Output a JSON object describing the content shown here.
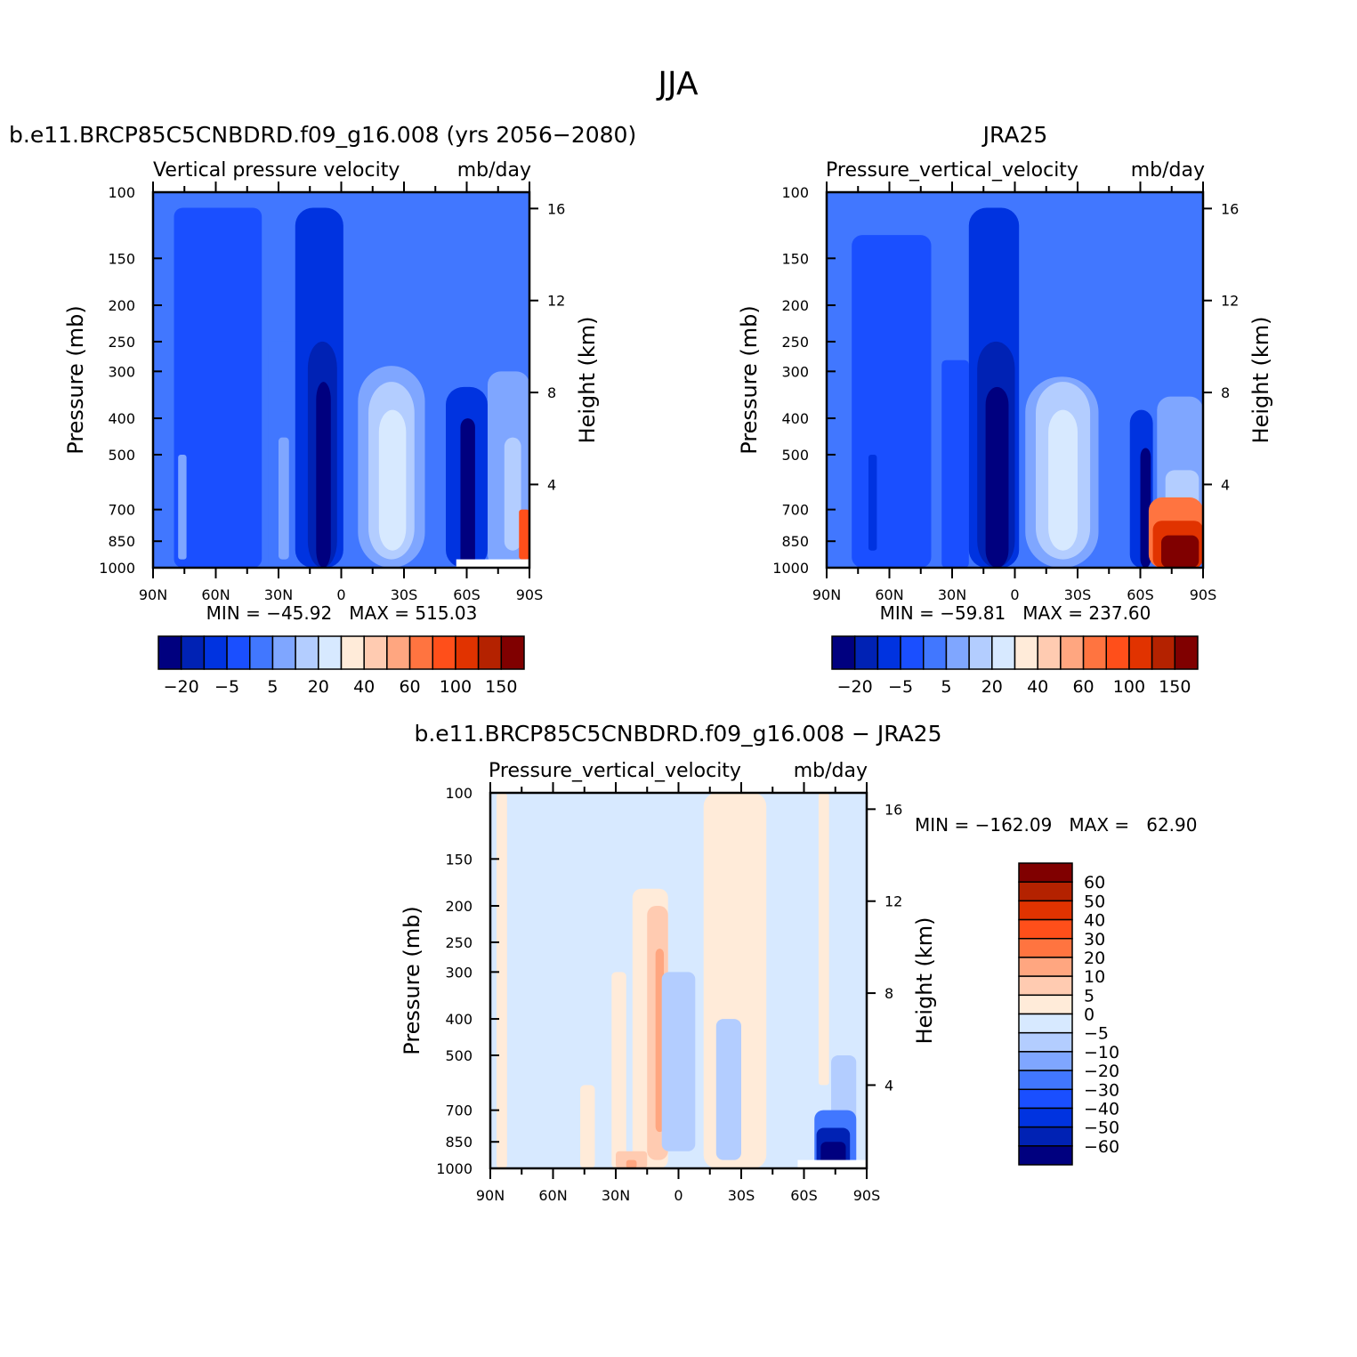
{
  "chart_data": [
    {
      "type": "contour",
      "suptitle": "JJA",
      "title": "b.e11.BRCP85C5CNBDRD.f09_g16.008 (yrs 2056−2080)",
      "subtitle_left": "Vertical pressure velocity",
      "subtitle_right": "mb/day",
      "ylabel": "Pressure (mb)",
      "ylabel_right": "Height (km)",
      "y_scale": "log",
      "ylim": [
        1000,
        100
      ],
      "y_ticks": [
        "100",
        "150",
        "200",
        "250",
        "300",
        "400",
        "500",
        "700",
        "850",
        "1000"
      ],
      "y_right_ticks": [
        "16",
        "12",
        "8",
        "4"
      ],
      "x_ticks": [
        "90N",
        "60N",
        "30N",
        "0",
        "30S",
        "60S",
        "90S"
      ],
      "minmax": "MIN = −45.92   MAX = 515.03",
      "colorbar_labels": [
        "−20",
        "−5",
        "5",
        "20",
        "40",
        "60",
        "100",
        "150"
      ],
      "colors": [
        "#00007f",
        "#0022b4",
        "#0033e0",
        "#1a4fff",
        "#4177ff",
        "#7fa6ff",
        "#b3cdff",
        "#d7e9ff",
        "#ffebd9",
        "#ffcbb1",
        "#ffa680",
        "#ff7440",
        "#ff4f1a",
        "#e13300",
        "#b42200",
        "#800000"
      ]
    },
    {
      "type": "contour",
      "title": "JRA25",
      "subtitle_left": "Pressure_vertical_velocity",
      "subtitle_right": "mb/day",
      "ylabel": "Pressure (mb)",
      "ylabel_right": "Height (km)",
      "y_scale": "log",
      "ylim": [
        1000,
        100
      ],
      "y_ticks": [
        "100",
        "150",
        "200",
        "250",
        "300",
        "400",
        "500",
        "700",
        "850",
        "1000"
      ],
      "y_right_ticks": [
        "16",
        "12",
        "8",
        "4"
      ],
      "x_ticks": [
        "90N",
        "60N",
        "30N",
        "0",
        "30S",
        "60S",
        "90S"
      ],
      "minmax": "MIN = −59.81   MAX = 237.60",
      "colorbar_labels": [
        "−20",
        "−5",
        "5",
        "20",
        "40",
        "60",
        "100",
        "150"
      ]
    },
    {
      "type": "contour",
      "title": "b.e11.BRCP85C5CNBDRD.f09_g16.008 − JRA25",
      "subtitle_left": "Pressure_vertical_velocity",
      "subtitle_right": "mb/day",
      "ylabel": "Pressure (mb)",
      "ylabel_right": "Height (km)",
      "y_scale": "log",
      "ylim": [
        1000,
        100
      ],
      "y_ticks": [
        "100",
        "150",
        "200",
        "250",
        "300",
        "400",
        "500",
        "700",
        "850",
        "1000"
      ],
      "y_right_ticks": [
        "16",
        "12",
        "8",
        "4"
      ],
      "x_ticks": [
        "90N",
        "60N",
        "30N",
        "0",
        "30S",
        "60S",
        "90S"
      ],
      "minmax": "MIN = −162.09   MAX =   62.90",
      "colorbar_labels": [
        "60",
        "50",
        "40",
        "30",
        "20",
        "10",
        "5",
        "0",
        "−5",
        "−10",
        "−20",
        "−30",
        "−40",
        "−50",
        "−60"
      ]
    }
  ]
}
